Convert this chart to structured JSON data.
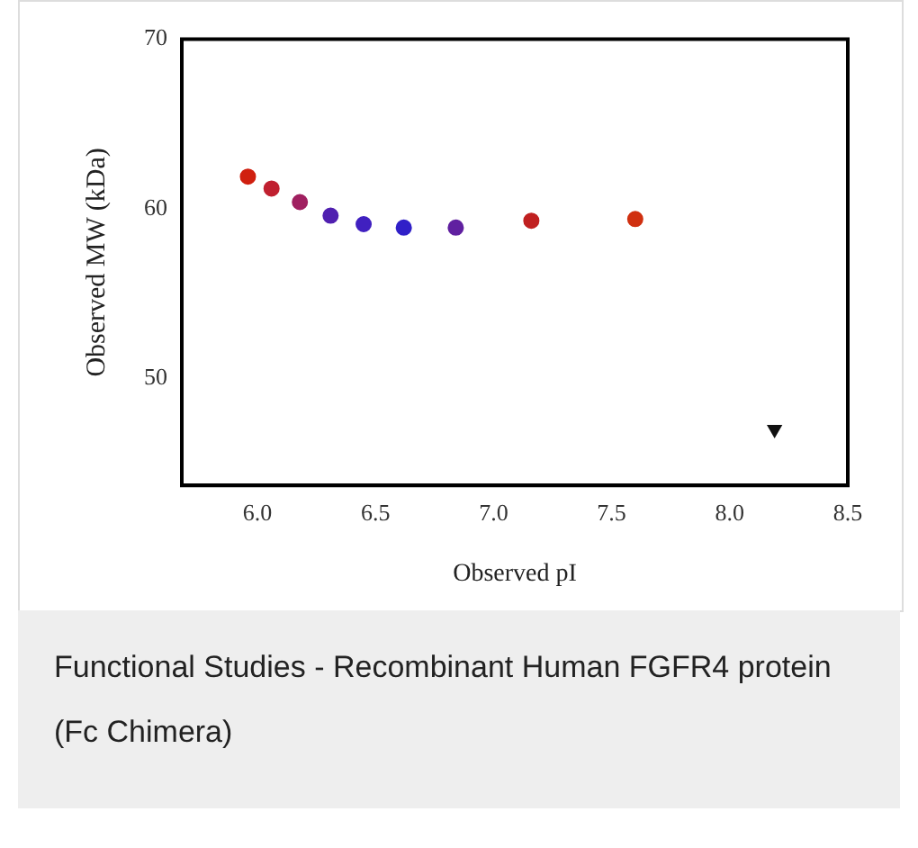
{
  "chart_data": {
    "type": "scatter",
    "xlabel": "Observed pI",
    "ylabel": "Observed MW (kDa)",
    "xlim": [
      5.68,
      8.5
    ],
    "xticks": [
      {
        "value": 6,
        "label": "6.0"
      },
      {
        "value": 6.5,
        "label": "6.5"
      },
      {
        "value": 7,
        "label": "7.0"
      },
      {
        "value": 7.5,
        "label": "7.5"
      },
      {
        "value": 8,
        "label": "8.0"
      },
      {
        "value": 8.5,
        "label": "8.5"
      }
    ],
    "ylim": [
      43.7,
      70
    ],
    "yticks": [
      50,
      60,
      70
    ],
    "grid": false,
    "legend": false,
    "series": [
      {
        "marker": "circle",
        "colors": [
          "#d02010",
          "#c02030",
          "#a02060",
          "#5020b0",
          "#4020c0",
          "#3020c8",
          "#6020a0",
          "#c02020",
          "#d03010"
        ],
        "x": [
          5.96,
          6.06,
          6.18,
          6.31,
          6.45,
          6.62,
          6.84,
          7.16,
          7.6
        ],
        "values": [
          61.9,
          61.2,
          60.4,
          59.6,
          59.1,
          58.9,
          58.9,
          59.3,
          59.4
        ]
      },
      {
        "marker": "triangle",
        "color": "#111111",
        "x": [
          8.19
        ],
        "values": [
          47.0
        ]
      }
    ],
    "annotations": [
      "Functional Studies - Recombinant Human FGFR4 protein (Fc Chimera)"
    ]
  }
}
